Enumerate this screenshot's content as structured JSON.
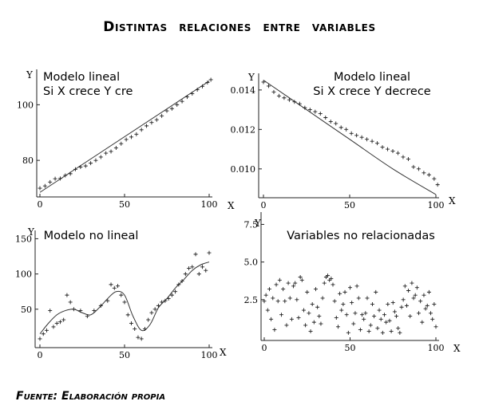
{
  "title": "Distintas relaciones entre variables",
  "source": "Fuente: Elaboración propia",
  "chart_data": [
    {
      "type": "scatter",
      "panel_title": [
        "Modelo lineal",
        "Si X crece Y cre"
      ],
      "xlabel": "X",
      "ylabel": "Y",
      "xlim": [
        0,
        100
      ],
      "ylim": [
        68,
        111
      ],
      "xticks": [
        "0",
        "50",
        "100"
      ],
      "xtick_values": [
        0,
        50,
        100
      ],
      "yticks": [
        "80",
        "100"
      ],
      "ytick_values": [
        80,
        100
      ],
      "fit_line": {
        "type": "linear",
        "x": [
          0,
          100
        ],
        "y": [
          68.5,
          108.5
        ]
      },
      "series": [
        {
          "marker": "+",
          "x": [
            0,
            3,
            6,
            9,
            12,
            15,
            18,
            21,
            24,
            27,
            30,
            33,
            36,
            39,
            42,
            45,
            48,
            51,
            54,
            57,
            60,
            63,
            66,
            69,
            72,
            75,
            78,
            81,
            84,
            87,
            90,
            93,
            96,
            99,
            101
          ],
          "y": [
            70.0,
            70.8,
            72.2,
            73.4,
            73.5,
            74.6,
            75.2,
            76.8,
            77.6,
            78.0,
            79.0,
            80.0,
            81.2,
            82.6,
            83.2,
            84.5,
            86.0,
            87.5,
            88.4,
            89.4,
            91.0,
            92.4,
            93.6,
            94.6,
            96.0,
            97.8,
            98.6,
            100.0,
            101.2,
            102.8,
            104.0,
            105.4,
            106.6,
            108.0,
            109.0
          ]
        }
      ]
    },
    {
      "type": "scatter",
      "panel_title": [
        "Modelo lineal",
        "Si X crece Y decrece"
      ],
      "xlabel": "X",
      "ylabel": "Y",
      "xlim": [
        0,
        100
      ],
      "ylim": [
        0.0087,
        0.0146
      ],
      "xticks": [
        "0",
        "50",
        "100"
      ],
      "xtick_values": [
        0,
        50,
        100
      ],
      "yticks": [
        "0.010",
        "0.012",
        "0.014"
      ],
      "ytick_values": [
        0.01,
        0.012,
        0.014
      ],
      "fit_line": {
        "type": "curve",
        "x": [
          0,
          25,
          50,
          75,
          100
        ],
        "y": [
          0.0145,
          0.013,
          0.0115,
          0.01,
          0.0087
        ]
      },
      "series": [
        {
          "marker": "+",
          "x": [
            0,
            3,
            6,
            9,
            12,
            15,
            18,
            21,
            24,
            27,
            30,
            33,
            36,
            39,
            42,
            45,
            48,
            51,
            54,
            57,
            60,
            63,
            66,
            69,
            72,
            75,
            78,
            81,
            84,
            87,
            90,
            93,
            96,
            99,
            101
          ],
          "y": [
            0.0144,
            0.0142,
            0.0139,
            0.0137,
            0.0136,
            0.0135,
            0.0134,
            0.0133,
            0.0131,
            0.013,
            0.0129,
            0.0128,
            0.0126,
            0.0124,
            0.0123,
            0.0121,
            0.012,
            0.0118,
            0.0117,
            0.0116,
            0.0115,
            0.0114,
            0.0113,
            0.0111,
            0.011,
            0.0109,
            0.0108,
            0.0106,
            0.0105,
            0.0101,
            0.01,
            0.0098,
            0.0097,
            0.0095,
            0.0092
          ]
        }
      ]
    },
    {
      "type": "scatter",
      "panel_title": [
        "Modelo no lineal"
      ],
      "xlabel": "X",
      "ylabel": "Y",
      "xlim": [
        0,
        100
      ],
      "ylim": [
        0,
        155
      ],
      "xticks": [
        "0",
        "50",
        "100"
      ],
      "xtick_values": [
        0,
        50,
        100
      ],
      "yticks": [
        "50",
        "100",
        "150"
      ],
      "ytick_values": [
        50,
        100,
        150
      ],
      "fit_line": {
        "type": "curve",
        "x": [
          0,
          5,
          10,
          15,
          20,
          25,
          30,
          35,
          40,
          45,
          50,
          55,
          60,
          65,
          70,
          75,
          80,
          85,
          90,
          95,
          100
        ],
        "y": [
          15,
          30,
          42,
          48,
          50,
          45,
          42,
          52,
          65,
          75,
          70,
          40,
          20,
          28,
          52,
          65,
          80,
          92,
          105,
          113,
          117
        ]
      },
      "series": [
        {
          "marker": "+",
          "x": [
            0,
            2,
            4,
            6,
            8,
            10,
            12,
            14,
            16,
            18,
            20,
            24,
            28,
            32,
            36,
            40,
            42,
            44,
            46,
            48,
            50,
            52,
            54,
            56,
            58,
            60,
            62,
            64,
            66,
            68,
            70,
            72,
            74,
            76,
            78,
            80,
            82,
            84,
            86,
            88,
            90,
            92,
            94,
            96,
            98,
            100
          ],
          "y": [
            8,
            15,
            20,
            48,
            25,
            30,
            32,
            35,
            70,
            60,
            50,
            48,
            40,
            48,
            55,
            62,
            85,
            80,
            83,
            70,
            60,
            42,
            30,
            22,
            10,
            8,
            22,
            35,
            45,
            50,
            55,
            60,
            62,
            65,
            70,
            75,
            85,
            90,
            100,
            108,
            110,
            128,
            100,
            110,
            105,
            130
          ]
        }
      ]
    },
    {
      "type": "scatter",
      "panel_title": [
        "Variables no relacionadas"
      ],
      "xlabel": "X",
      "ylabel": "Y",
      "xlim": [
        0,
        100
      ],
      "ylim": [
        0,
        8
      ],
      "xticks": [
        "0",
        "50",
        "100"
      ],
      "xtick_values": [
        0,
        50,
        100
      ],
      "yticks": [
        "2.5",
        "5.0",
        "7.5"
      ],
      "ytick_values": [
        2.5,
        5.0,
        7.5
      ],
      "series": [
        {
          "marker": "+",
          "x": [
            0,
            1,
            2,
            3,
            4,
            5,
            6,
            7,
            8,
            9,
            10,
            11,
            12,
            13,
            14,
            15,
            16,
            17,
            18,
            19,
            20,
            21,
            22,
            23,
            24,
            25,
            26,
            27,
            28,
            29,
            30,
            31,
            32,
            33,
            34,
            35,
            36,
            37,
            38,
            39,
            40,
            41,
            42,
            43,
            44,
            45,
            46,
            47,
            48,
            49,
            50,
            51,
            52,
            53,
            54,
            55,
            56,
            57,
            58,
            59,
            60,
            61,
            62,
            63,
            64,
            65,
            66,
            67,
            68,
            69,
            70,
            71,
            72,
            73,
            74,
            75,
            76,
            77,
            78,
            79,
            80,
            81,
            82,
            83,
            84,
            85,
            86,
            87,
            88,
            89,
            90,
            91,
            92,
            93,
            94,
            95,
            96,
            97,
            98,
            99,
            100
          ],
          "y": [
            2.4,
            2.8,
            1.8,
            3.2,
            1.2,
            2.6,
            0.5,
            3.5,
            2.4,
            3.8,
            1.5,
            3.2,
            2.4,
            0.8,
            3.6,
            2.6,
            1.2,
            3.4,
            3.6,
            2.5,
            1.3,
            4.0,
            3.8,
            1.8,
            0.8,
            3.0,
            1.6,
            0.4,
            2.2,
            1.0,
            3.2,
            2.0,
            1.4,
            0.9,
            2.6,
            3.6,
            4.0,
            4.1,
            3.8,
            3.9,
            3.5,
            2.4,
            1.3,
            0.7,
            2.9,
            1.8,
            2.2,
            3.0,
            1.5,
            0.3,
            3.3,
            2.3,
            0.9,
            1.6,
            3.4,
            2.6,
            0.5,
            1.5,
            1.2,
            1.6,
            2.6,
            0.4,
            0.8,
            2.2,
            1.4,
            3.0,
            0.6,
            1.8,
            1.2,
            0.3,
            1.5,
            1.0,
            2.2,
            1.1,
            0.4,
            2.3,
            1.7,
            1.4,
            0.6,
            0.3,
            2.0,
            2.5,
            3.4,
            2.1,
            3.1,
            1.4,
            3.6,
            2.6,
            2.8,
            3.3,
            1.6,
            2.4,
            1.0,
            2.8,
            1.9,
            2.1,
            3.0,
            1.6,
            1.2,
            2.2,
            0.7
          ]
        }
      ]
    }
  ]
}
